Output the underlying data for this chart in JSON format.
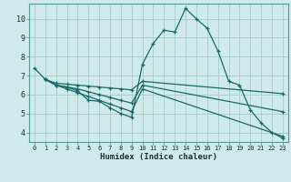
{
  "xlabel": "Humidex (Indice chaleur)",
  "background_color": "#ceeaea",
  "grid_color": "#aecece",
  "line_color": "#1a6868",
  "xlim": [
    -0.5,
    23.5
  ],
  "ylim": [
    3.5,
    10.8
  ],
  "yticks": [
    4,
    5,
    6,
    7,
    8,
    9,
    10
  ],
  "xticks": [
    0,
    1,
    2,
    3,
    4,
    5,
    6,
    7,
    8,
    9,
    10,
    11,
    12,
    13,
    14,
    15,
    16,
    17,
    18,
    19,
    20,
    21,
    22,
    23
  ],
  "lines": [
    {
      "x": [
        0,
        1,
        2,
        3,
        4,
        5,
        6,
        7,
        8,
        9,
        10,
        11,
        12,
        13,
        14,
        15,
        16,
        17,
        18,
        19,
        20,
        21,
        22,
        23
      ],
      "y": [
        7.4,
        6.8,
        6.5,
        6.4,
        6.2,
        5.7,
        5.65,
        5.3,
        5.0,
        4.8,
        7.6,
        8.7,
        9.4,
        9.3,
        10.55,
        10.0,
        9.5,
        8.3,
        6.7,
        6.5,
        5.2,
        4.5,
        4.0,
        3.7
      ]
    },
    {
      "x": [
        1,
        2,
        3,
        4,
        5,
        6,
        7,
        8,
        9,
        10,
        23
      ],
      "y": [
        6.8,
        6.6,
        6.55,
        6.5,
        6.45,
        6.4,
        6.35,
        6.3,
        6.25,
        6.7,
        6.05
      ]
    },
    {
      "x": [
        1,
        2,
        3,
        4,
        5,
        6,
        7,
        8,
        9,
        10,
        23
      ],
      "y": [
        6.8,
        6.5,
        6.4,
        6.3,
        6.15,
        6.0,
        5.85,
        5.7,
        5.55,
        6.5,
        5.1
      ]
    },
    {
      "x": [
        1,
        2,
        3,
        4,
        5,
        6,
        7,
        8,
        9,
        10,
        23
      ],
      "y": [
        6.8,
        6.5,
        6.3,
        6.1,
        5.9,
        5.7,
        5.5,
        5.3,
        5.1,
        6.3,
        3.8
      ]
    }
  ]
}
